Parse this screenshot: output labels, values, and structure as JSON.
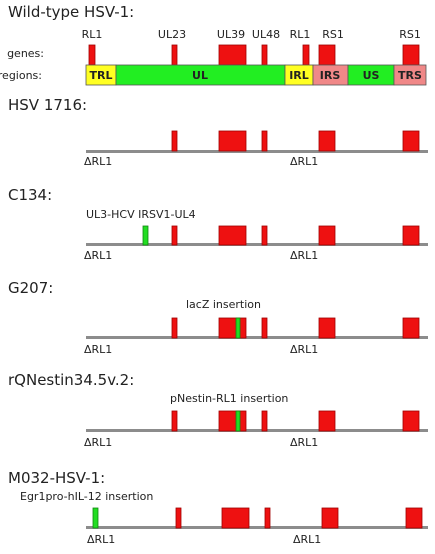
{
  "colors": {
    "backbone": "#8c8c8c",
    "gene_red": "#ee1111",
    "gene_outline": "#a00000",
    "insert_green": "#22dd22",
    "insert_outline": "#118811",
    "region_yellow": "#ffff22",
    "region_green": "#22ee22",
    "region_pink": "#f08888",
    "text": "#222222"
  },
  "wildtype": {
    "title": "Wild-type HSV-1:",
    "genes_label": "genes:",
    "regions_label": "regions:",
    "gene_labels": [
      "RL1",
      "UL23",
      "UL39",
      "UL48",
      "RL1",
      "RS1",
      "RS1"
    ],
    "regions": [
      {
        "name": "TRL",
        "color": "yellow"
      },
      {
        "name": "UL",
        "color": "green"
      },
      {
        "name": "IRL",
        "color": "yellow"
      },
      {
        "name": "IRS",
        "color": "pink"
      },
      {
        "name": "US",
        "color": "green"
      },
      {
        "name": "TRS",
        "color": "pink"
      }
    ]
  },
  "constructs": [
    {
      "title": "HSV 1716:",
      "deletion_label": "ΔRL1",
      "annotations": [],
      "green_inserts": []
    },
    {
      "title": "C134:",
      "deletion_label": "ΔRL1",
      "annotations": [
        "UL3-HCV IRSV1-UL4"
      ],
      "green_inserts": [
        "UL3-HCV IRSV1-UL4"
      ]
    },
    {
      "title": "G207:",
      "deletion_label": "ΔRL1",
      "annotations": [
        "lacZ insertion"
      ],
      "green_inserts": [
        "lacZ insertion"
      ]
    },
    {
      "title": "rQNestin34.5v.2:",
      "deletion_label": "ΔRL1",
      "annotations": [
        "pNestin-RL1 insertion"
      ],
      "green_inserts": [
        "pNestin-RL1 insertion"
      ]
    },
    {
      "title": "M032-HSV-1:",
      "deletion_label": "ΔRL1",
      "annotations": [
        "Egr1pro-hIL-12 insertion"
      ],
      "green_inserts": [
        "Egr1pro-hIL-12 insertion"
      ]
    }
  ]
}
